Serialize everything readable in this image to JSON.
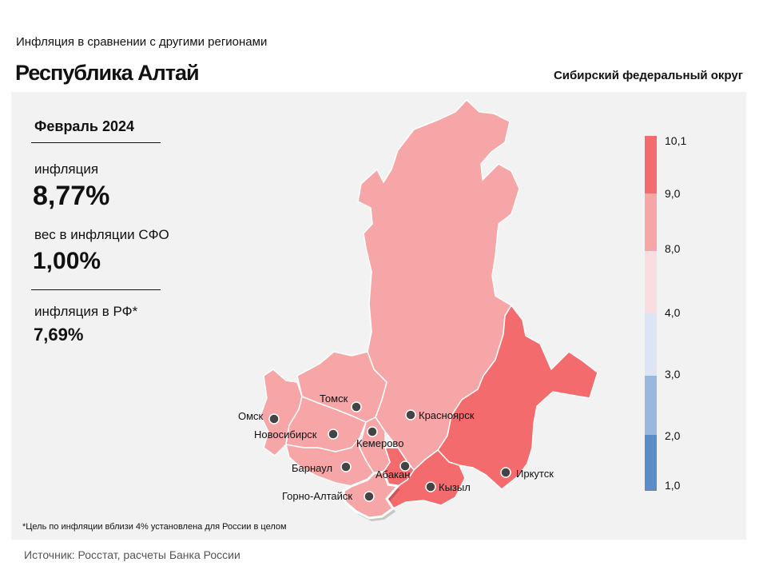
{
  "header": {
    "subtitle": "Инфляция  в сравнении  с другими  регионами",
    "title": "Республика Алтай",
    "district": "Сибирский федеральный округ"
  },
  "stats": {
    "period": "Февраль 2024",
    "inflation_label": "инфляция",
    "inflation_value": "8,77%",
    "weight_label": "вес в инфляции  СФО",
    "weight_value": "1,00%",
    "rf_label": "инфляция  в РФ*",
    "rf_value": "7,69%"
  },
  "footnote": "*Цель по инфляции вблизи 4% установлена для России в целом",
  "source": "Источник: Росстат, расчеты Банка России",
  "legend": {
    "ticks": [
      "10,1",
      "9,0",
      "8,0",
      "4,0",
      "3,0",
      "2,0",
      "1,0"
    ],
    "colors": [
      "#f46b6e",
      "#f7a6a8",
      "#f9dde0",
      "#dde5f5",
      "#9ab8de",
      "#5b8cc8"
    ]
  },
  "map": {
    "cities": [
      {
        "name": "Томск"
      },
      {
        "name": "Омск"
      },
      {
        "name": "Новосибирск"
      },
      {
        "name": "Кемерово"
      },
      {
        "name": "Барнаул"
      },
      {
        "name": "Горно-Алтайск"
      },
      {
        "name": "Абакан"
      },
      {
        "name": "Красноярск"
      },
      {
        "name": "Кызыл"
      },
      {
        "name": "Иркутск"
      }
    ],
    "highlighted_region": "Республика Алтай",
    "colors": {
      "high": "#f46b6e",
      "mid": "#f7a6a8",
      "border": "#ffffff",
      "dot": "#444444"
    }
  }
}
